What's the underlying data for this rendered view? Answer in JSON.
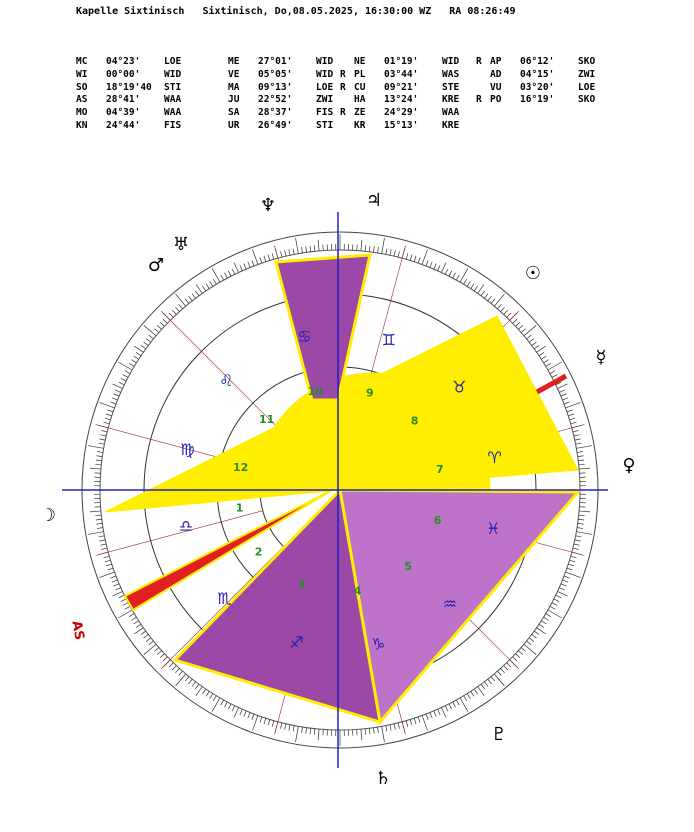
{
  "header": {
    "title": "Kapelle Sixtinisch",
    "subtitle": "Sixtinisch, Do,08.05.2025, 16:30:00 WZ",
    "ra": "RA 08:26:49"
  },
  "positions": [
    [
      {
        "r": "",
        "name": "MC",
        "deg": "04°23'",
        "sign": "LOE"
      },
      {
        "r": "",
        "name": "ME",
        "deg": "27°01'",
        "sign": "WID"
      },
      {
        "r": "",
        "name": "NE",
        "deg": "01°19'",
        "sign": "WID"
      },
      {
        "r": "R",
        "name": "AP",
        "deg": "06°12'",
        "sign": "SKO"
      }
    ],
    [
      {
        "r": "",
        "name": "WI",
        "deg": "00°00'",
        "sign": "WID"
      },
      {
        "r": "",
        "name": "VE",
        "deg": "05°05'",
        "sign": "WID"
      },
      {
        "r": "R",
        "name": "PL",
        "deg": "03°44'",
        "sign": "WAS"
      },
      {
        "r": "",
        "name": "AD",
        "deg": "04°15'",
        "sign": "ZWI"
      }
    ],
    [
      {
        "r": "",
        "name": "SO",
        "deg": "18°19'40",
        "sign": "STI"
      },
      {
        "r": "",
        "name": "MA",
        "deg": "09°13'",
        "sign": "LOE"
      },
      {
        "r": "R",
        "name": "CU",
        "deg": "09°21'",
        "sign": "STE"
      },
      {
        "r": "",
        "name": "VU",
        "deg": "03°20'",
        "sign": "LOE"
      }
    ],
    [
      {
        "r": "",
        "name": "AS",
        "deg": "28°41'",
        "sign": "WAA"
      },
      {
        "r": "",
        "name": "JU",
        "deg": "22°52'",
        "sign": "ZWI"
      },
      {
        "r": "",
        "name": "HA",
        "deg": "13°24'",
        "sign": "KRE"
      },
      {
        "r": "R",
        "name": "PO",
        "deg": "16°19'",
        "sign": "SKO"
      }
    ],
    [
      {
        "r": "",
        "name": "MO",
        "deg": "04°39'",
        "sign": "WAA"
      },
      {
        "r": "",
        "name": "SA",
        "deg": "28°37'",
        "sign": "FIS"
      },
      {
        "r": "R",
        "name": "ZE",
        "deg": "24°29'",
        "sign": "WAA"
      },
      null
    ],
    [
      {
        "r": "",
        "name": "KN",
        "deg": "24°44'",
        "sign": "FIS"
      },
      {
        "r": "",
        "name": "UR",
        "deg": "26°49'",
        "sign": "STI"
      },
      {
        "r": "",
        "name": "KR",
        "deg": "15°13'",
        "sign": "KRE"
      },
      null
    ]
  ],
  "wheel": {
    "house_numbers": [
      "1",
      "2",
      "3",
      "4",
      "5",
      "6",
      "7",
      "8",
      "9",
      "10",
      "11",
      "12"
    ],
    "sign_glyphs": [
      "♈",
      "♉",
      "♊",
      "♋",
      "♌",
      "♍",
      "♎",
      "♏",
      "♐",
      "♑",
      "♒",
      "♓"
    ],
    "asc_label": "AS",
    "planets": [
      {
        "id": "sun",
        "glyph": "☉"
      },
      {
        "id": "mercury",
        "glyph": "☿"
      },
      {
        "id": "venus",
        "glyph": "♀"
      },
      {
        "id": "mars",
        "glyph": "♂"
      },
      {
        "id": "jupiter",
        "glyph": "♃"
      },
      {
        "id": "saturn",
        "glyph": "♄"
      },
      {
        "id": "uranus",
        "glyph": "♅"
      },
      {
        "id": "neptune",
        "glyph": "♆"
      },
      {
        "id": "pluto",
        "glyph": "♇"
      },
      {
        "id": "moon",
        "glyph": "☽"
      }
    ],
    "colors": {
      "yellow": "#ffee00",
      "purple_dark": "#9c48a6",
      "purple_light": "#bd74c8",
      "red": "#e02020",
      "axis": "#2020c0",
      "house_number": "#2a8a2a",
      "sign_glyph": "#2020b0"
    }
  }
}
